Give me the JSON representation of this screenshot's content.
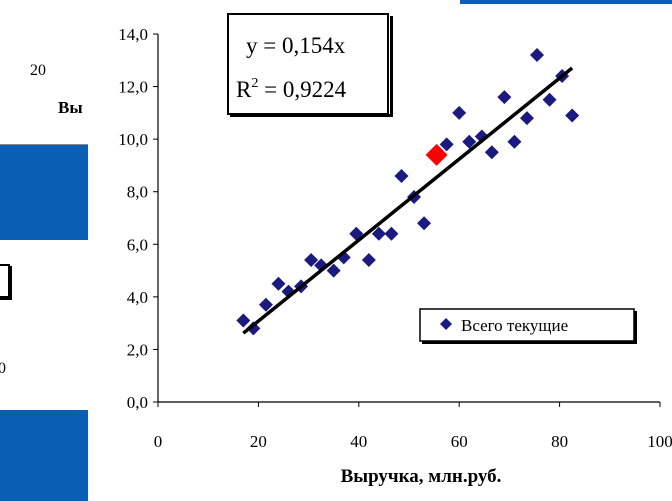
{
  "background": {
    "tick_left": "20",
    "partial_label": "Вы",
    "partial_tick": "0"
  },
  "chart_data": {
    "type": "scatter",
    "xlabel": "Выручка, млн.руб.",
    "ylabel": "",
    "xlim": [
      0,
      100
    ],
    "ylim": [
      0,
      14
    ],
    "x_ticks": [
      "0",
      "20",
      "40",
      "60",
      "80",
      "100"
    ],
    "y_ticks": [
      "0,0",
      "2,0",
      "4,0",
      "6,0",
      "8,0",
      "10,0",
      "12,0",
      "14,0"
    ],
    "series": [
      {
        "name": "Всего текущие",
        "color": "#1a1a80",
        "marker": "diamond",
        "points": [
          [
            17,
            3.1
          ],
          [
            19,
            2.8
          ],
          [
            21.5,
            3.7
          ],
          [
            24,
            4.5
          ],
          [
            26,
            4.2
          ],
          [
            28.5,
            4.4
          ],
          [
            30.5,
            5.4
          ],
          [
            32.5,
            5.2
          ],
          [
            35,
            5.0
          ],
          [
            37,
            5.5
          ],
          [
            39.5,
            6.4
          ],
          [
            42,
            5.4
          ],
          [
            44,
            6.4
          ],
          [
            46.5,
            6.4
          ],
          [
            48.5,
            8.6
          ],
          [
            51,
            7.8
          ],
          [
            53,
            6.8
          ],
          [
            57.5,
            9.8
          ],
          [
            60,
            11.0
          ],
          [
            62,
            9.9
          ],
          [
            64.5,
            10.1
          ],
          [
            66.5,
            9.5
          ],
          [
            69,
            11.6
          ],
          [
            71,
            9.9
          ],
          [
            73.5,
            10.8
          ],
          [
            75.5,
            13.2
          ],
          [
            78,
            11.5
          ],
          [
            80.5,
            12.4
          ],
          [
            82.5,
            10.9
          ]
        ]
      }
    ],
    "highlight_point": {
      "x": 55.5,
      "y": 9.4,
      "color": "#ff0000"
    },
    "trendline": {
      "slope": 0.154,
      "x_range": [
        17,
        82.5
      ],
      "color": "#000000"
    },
    "equation": "y = 0,154x",
    "r2_label": "R",
    "r2_exp": "2",
    "r2_value": " = 0,9224",
    "legend_position": "bottom-right",
    "grid": false
  }
}
